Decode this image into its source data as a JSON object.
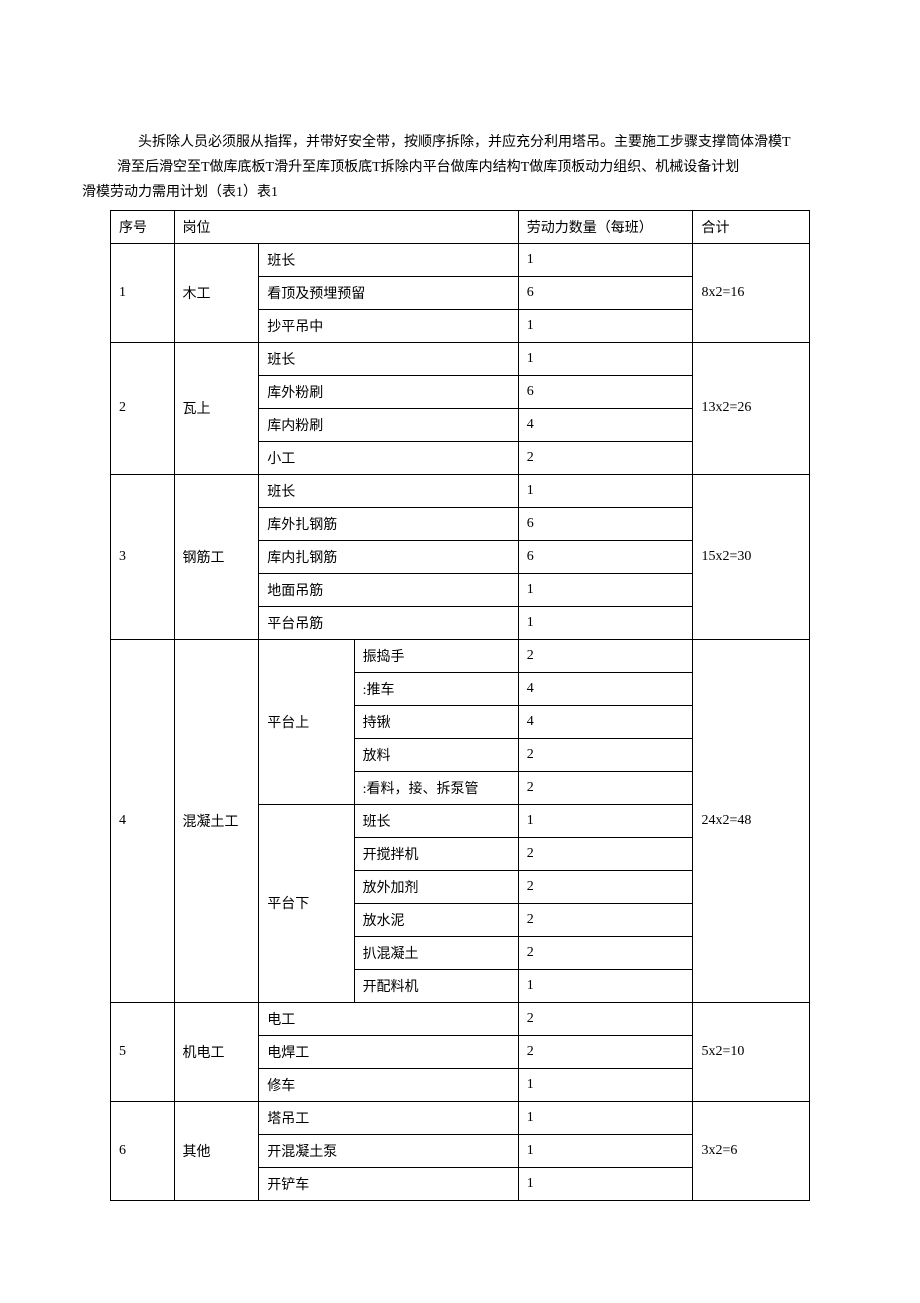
{
  "intro": {
    "line1": "头拆除人员必须服从指挥，并带好安全带，按顺序拆除，并应充分利用塔吊。主要施工步骤支撑筒体滑模T",
    "line2": "滑至后滑空至T做库底板T滑升至库顶板底T拆除内平台做库内结构T做库顶板动力组织、机械设备计划",
    "line3": "滑模劳动力需用计划（表1）表1"
  },
  "header": {
    "seq": "序号",
    "role": "岗位",
    "count": "劳动力数量（每班）",
    "total": "合计"
  },
  "rows": [
    {
      "seq": "1",
      "role": "木工",
      "subs": [
        {
          "label": "班长",
          "count": "1"
        },
        {
          "label": "看顶及预埋预留",
          "count": "6"
        },
        {
          "label": "抄平吊中",
          "count": "1"
        }
      ],
      "total": "8x2=16"
    },
    {
      "seq": "2",
      "role": "瓦上",
      "subs": [
        {
          "label": "班长",
          "count": "1"
        },
        {
          "label": "库外粉刷",
          "count": "6"
        },
        {
          "label": "库内粉刷",
          "count": "4"
        },
        {
          "label": "小工",
          "count": "2"
        }
      ],
      "total": "13x2=26"
    },
    {
      "seq": "3",
      "role": "钢筋工",
      "subs": [
        {
          "label": "班长",
          "count": "1"
        },
        {
          "label": "库外扎钢筋",
          "count": "6"
        },
        {
          "label": "库内扎钢筋",
          "count": "6"
        },
        {
          "label": "地面吊筋",
          "count": "1"
        },
        {
          "label": "平台吊筋",
          "count": "1"
        }
      ],
      "total": "15x2=30"
    },
    {
      "seq": "4",
      "role": "混凝土工",
      "groups": [
        {
          "label": "平台上",
          "subs": [
            {
              "label": "振捣手",
              "count": "2"
            },
            {
              "label": ":推车",
              "count": "4"
            },
            {
              "label": "持锹",
              "count": "4"
            },
            {
              "label": "放料",
              "count": "2"
            },
            {
              "label": ":看料，接、拆泵管",
              "count": "2"
            }
          ]
        },
        {
          "label": "平台下",
          "subs": [
            {
              "label": "班长",
              "count": "1"
            },
            {
              "label": "开搅拌机",
              "count": "2"
            },
            {
              "label": "放外加剂",
              "count": "2"
            },
            {
              "label": "放水泥",
              "count": "2"
            },
            {
              "label": "扒混凝土",
              "count": "2"
            },
            {
              "label": "开配料机",
              "count": "1"
            }
          ]
        }
      ],
      "total": "24x2=48"
    },
    {
      "seq": "5",
      "role": "机电工",
      "subs": [
        {
          "label": "电工",
          "count": "2"
        },
        {
          "label": "电焊工",
          "count": "2"
        },
        {
          "label": "修车",
          "count": "1"
        }
      ],
      "total": "5x2=10"
    },
    {
      "seq": "6",
      "role": "其他",
      "subs": [
        {
          "label": "塔吊工",
          "count": "1"
        },
        {
          "label": "开混凝土泵",
          "count": "1"
        },
        {
          "label": "开铲车",
          "count": "1"
        }
      ],
      "total": "3x2=6"
    }
  ]
}
